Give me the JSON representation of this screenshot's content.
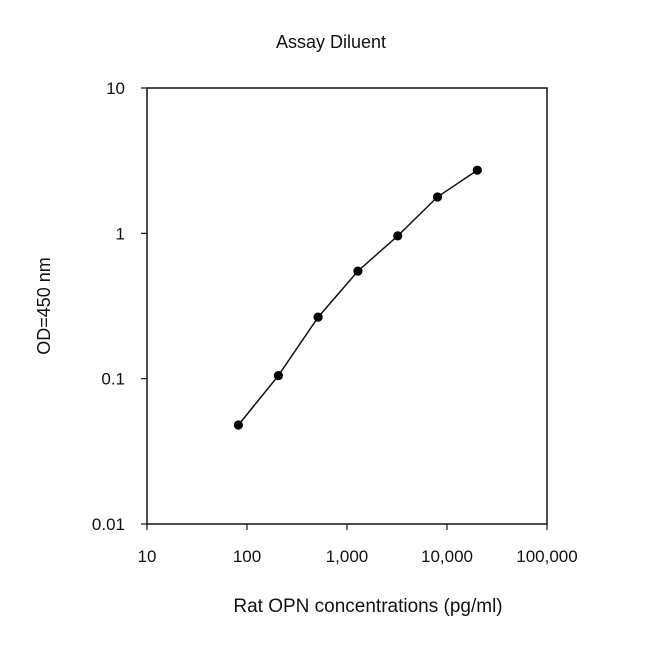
{
  "chart_data": {
    "type": "line",
    "title": "Assay Diluent",
    "xlabel": "Rat OPN concentrations (pg/ml)",
    "ylabel": "OD=450 nm",
    "x_scale": "log",
    "y_scale": "log",
    "xlim": [
      10,
      100000
    ],
    "ylim": [
      0.01,
      10
    ],
    "x_ticks": [
      10,
      100,
      1000,
      10000,
      100000
    ],
    "x_tick_labels": [
      "10",
      "100",
      "1,000",
      "10,000",
      "100,000"
    ],
    "y_ticks": [
      0.01,
      0.1,
      1,
      10
    ],
    "y_tick_labels": [
      "0.01",
      "0.1",
      "1",
      "10"
    ],
    "grid": false,
    "legend": "none",
    "series": [
      {
        "x": [
          82,
          206,
          514,
          1286,
          3215,
          8038,
          20094
        ],
        "y": [
          0.048,
          0.105,
          0.265,
          0.55,
          0.96,
          1.78,
          2.72
        ]
      }
    ],
    "colors": {
      "line": "#111111",
      "marker": "#000000",
      "axis": "#111111"
    }
  }
}
